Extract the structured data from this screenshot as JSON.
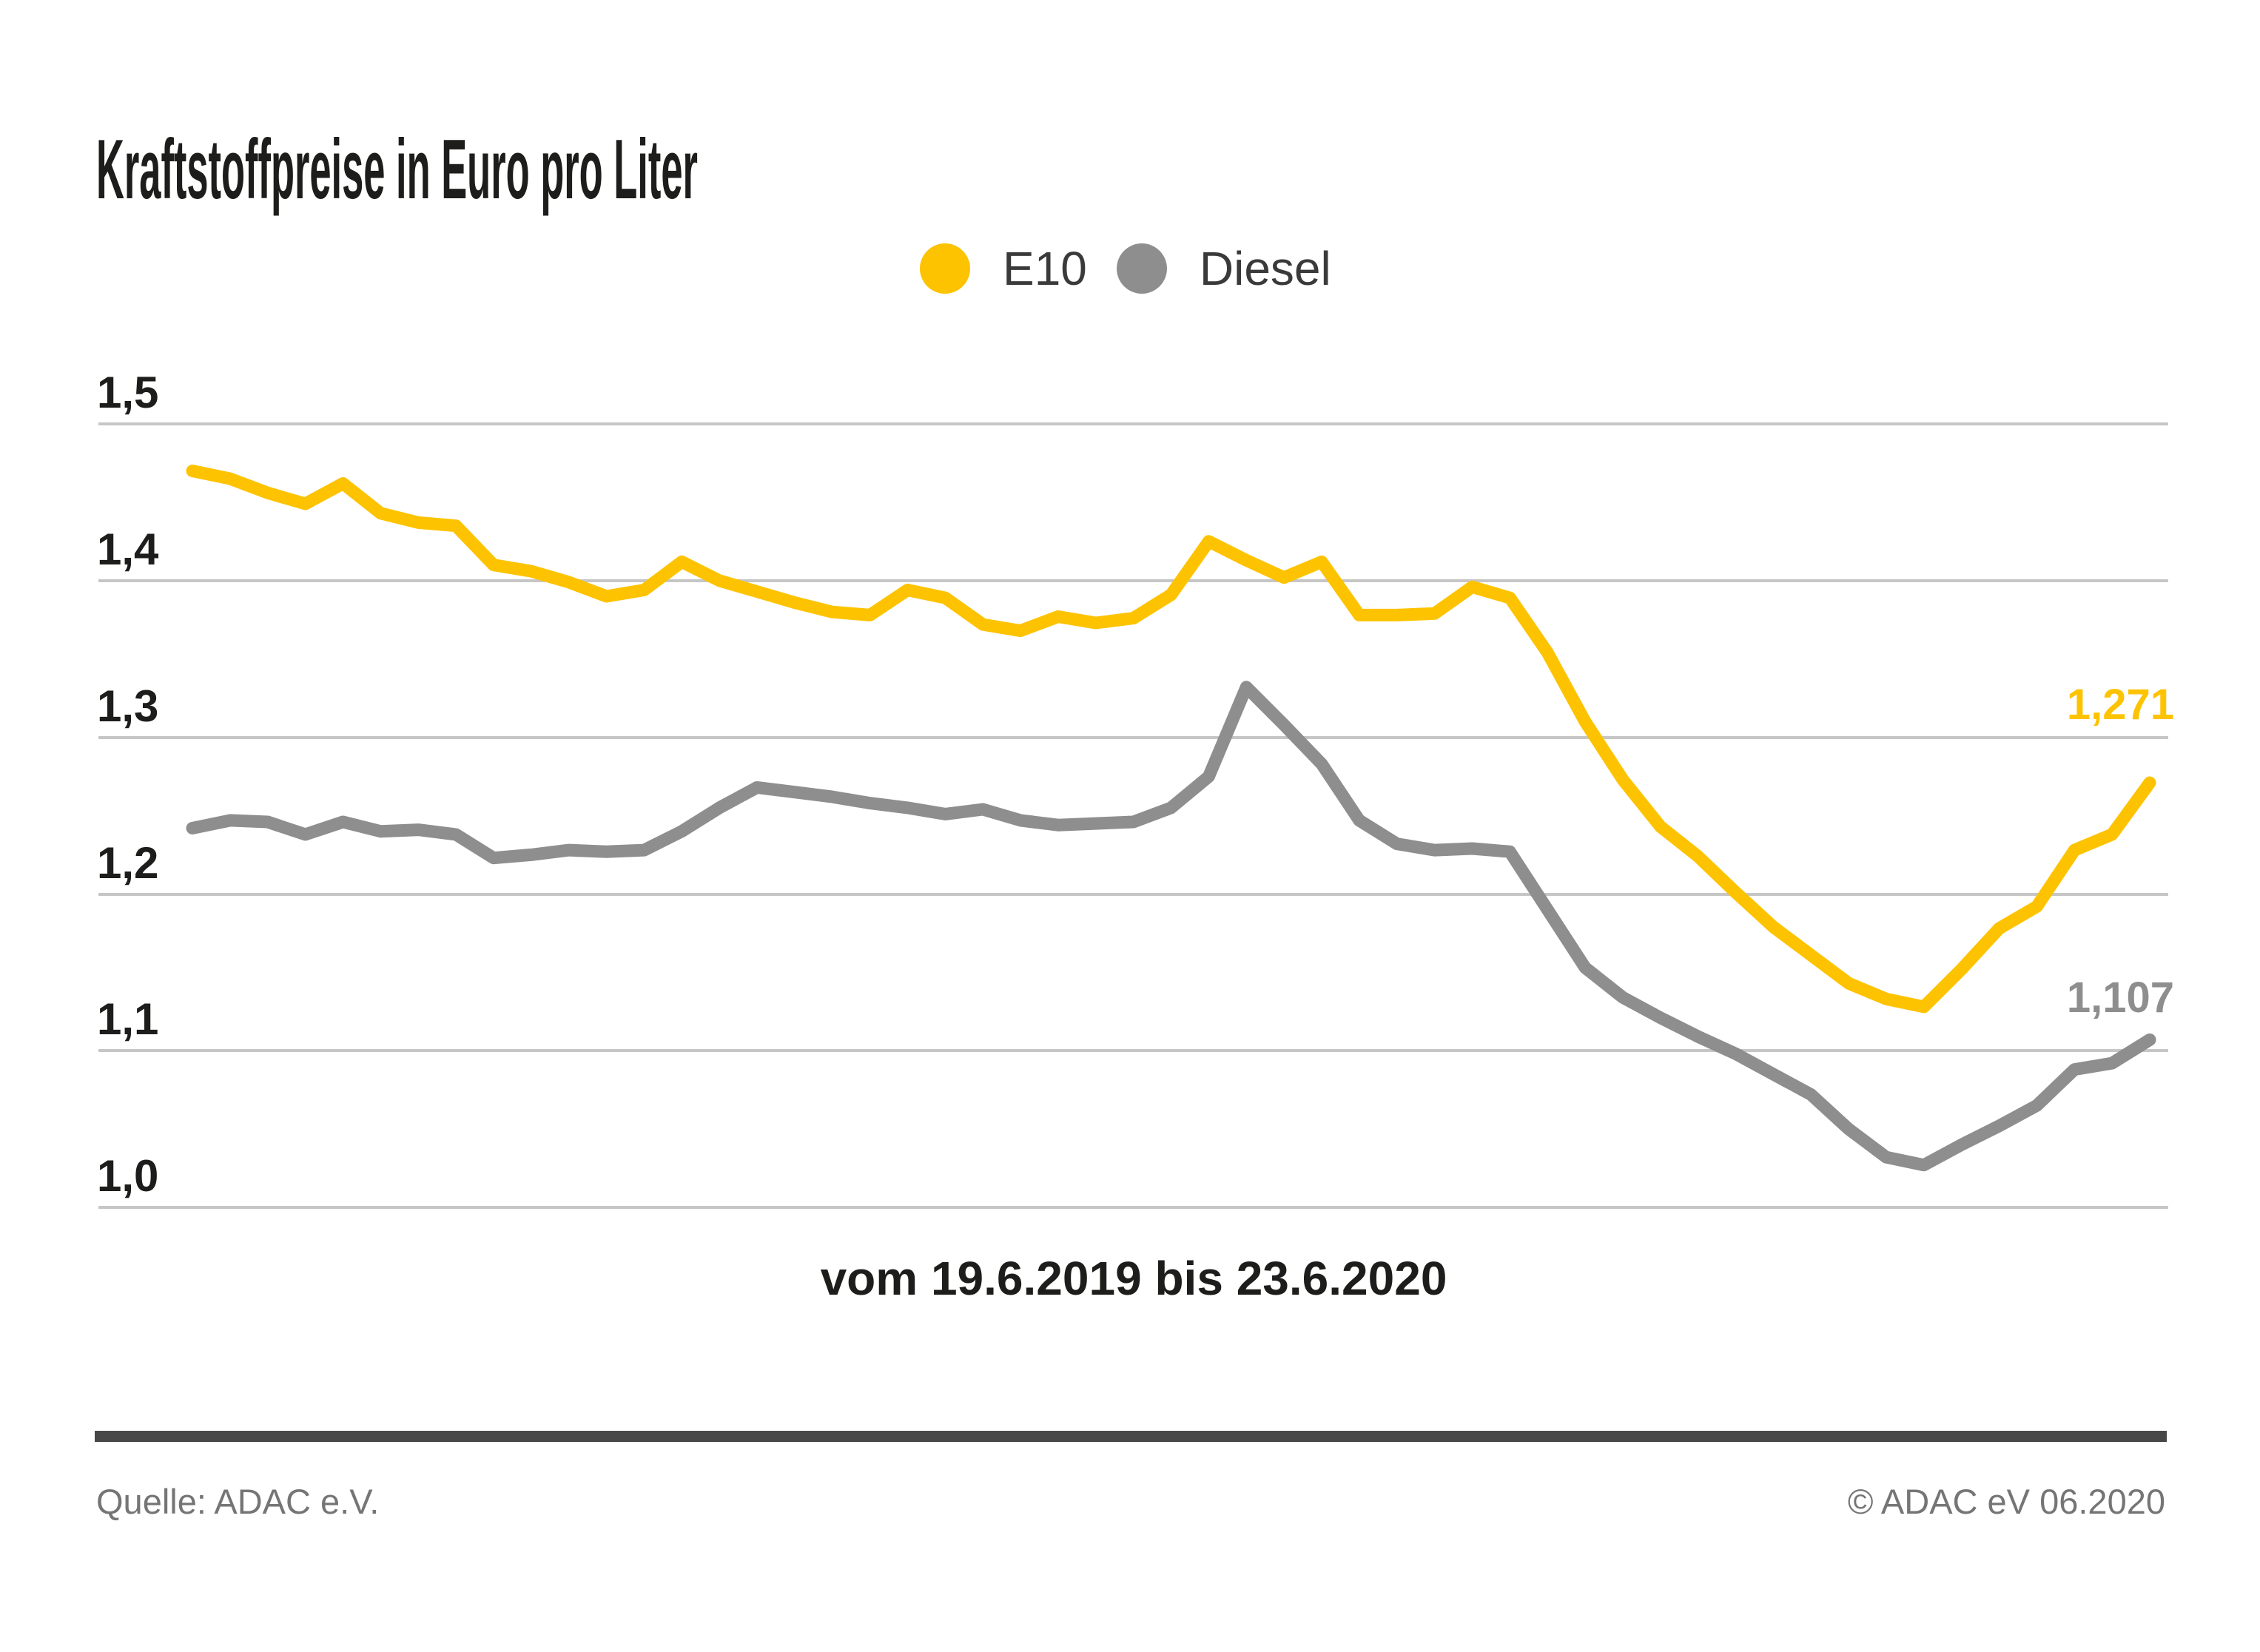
{
  "page": {
    "title": "Kraftstoffpreise in Euro pro Liter"
  },
  "legend": {
    "items": [
      {
        "label": "E10",
        "color": "#fdc300"
      },
      {
        "label": "Diesel",
        "color": "#8e8e8e"
      }
    ]
  },
  "chart_data": {
    "type": "line",
    "title": "Kraftstoffpreise in Euro pro Liter",
    "x_axis_label": "vom 19.6.2019 bis 23.6.2020",
    "x_description": "53 wöchentliche Werte vom 19.6.2019 bis 23.6.2020",
    "ylabel": "Euro pro Liter",
    "ylim": [
      1.0,
      1.5
    ],
    "grid": true,
    "legend_position": "top-center",
    "y_tick_labels": [
      "1,5",
      "1,4",
      "1,3",
      "1,2",
      "1,1",
      "1,0"
    ],
    "y_tick_values": [
      1.5,
      1.4,
      1.3,
      1.2,
      1.1,
      1.0
    ],
    "series": [
      {
        "name": "E10",
        "color": "#fdc300",
        "end_label": "1,271",
        "values": [
          1.47,
          1.465,
          1.456,
          1.449,
          1.462,
          1.443,
          1.437,
          1.435,
          1.41,
          1.406,
          1.399,
          1.39,
          1.394,
          1.412,
          1.4,
          1.393,
          1.386,
          1.38,
          1.378,
          1.394,
          1.389,
          1.372,
          1.368,
          1.377,
          1.373,
          1.376,
          1.391,
          1.425,
          1.413,
          1.402,
          1.412,
          1.378,
          1.378,
          1.379,
          1.396,
          1.389,
          1.354,
          1.31,
          1.273,
          1.243,
          1.224,
          1.201,
          1.179,
          1.161,
          1.143,
          1.133,
          1.128,
          1.152,
          1.178,
          1.192,
          1.228,
          1.238,
          1.271
        ]
      },
      {
        "name": "Diesel",
        "color": "#8e8e8e",
        "end_label": "1,107",
        "values": [
          1.242,
          1.247,
          1.246,
          1.238,
          1.246,
          1.24,
          1.241,
          1.238,
          1.223,
          1.225,
          1.228,
          1.227,
          1.228,
          1.24,
          1.255,
          1.268,
          1.265,
          1.262,
          1.258,
          1.255,
          1.251,
          1.254,
          1.247,
          1.244,
          1.245,
          1.246,
          1.255,
          1.275,
          1.332,
          1.308,
          1.283,
          1.247,
          1.232,
          1.228,
          1.229,
          1.227,
          1.19,
          1.153,
          1.134,
          1.121,
          1.109,
          1.098,
          1.085,
          1.072,
          1.05,
          1.032,
          1.027,
          1.04,
          1.052,
          1.065,
          1.088,
          1.092,
          1.107
        ]
      }
    ]
  },
  "footer": {
    "source": "Quelle: ADAC e.V.",
    "copyright": "© ADAC eV 06.2020"
  },
  "colors": {
    "background": "#ffffff",
    "grid": "#c6c6c6",
    "text": "#1d1d1b",
    "muted_text": "#757575",
    "footer_rule": "#474747",
    "e10": "#fdc300",
    "diesel": "#8e8e8e"
  }
}
